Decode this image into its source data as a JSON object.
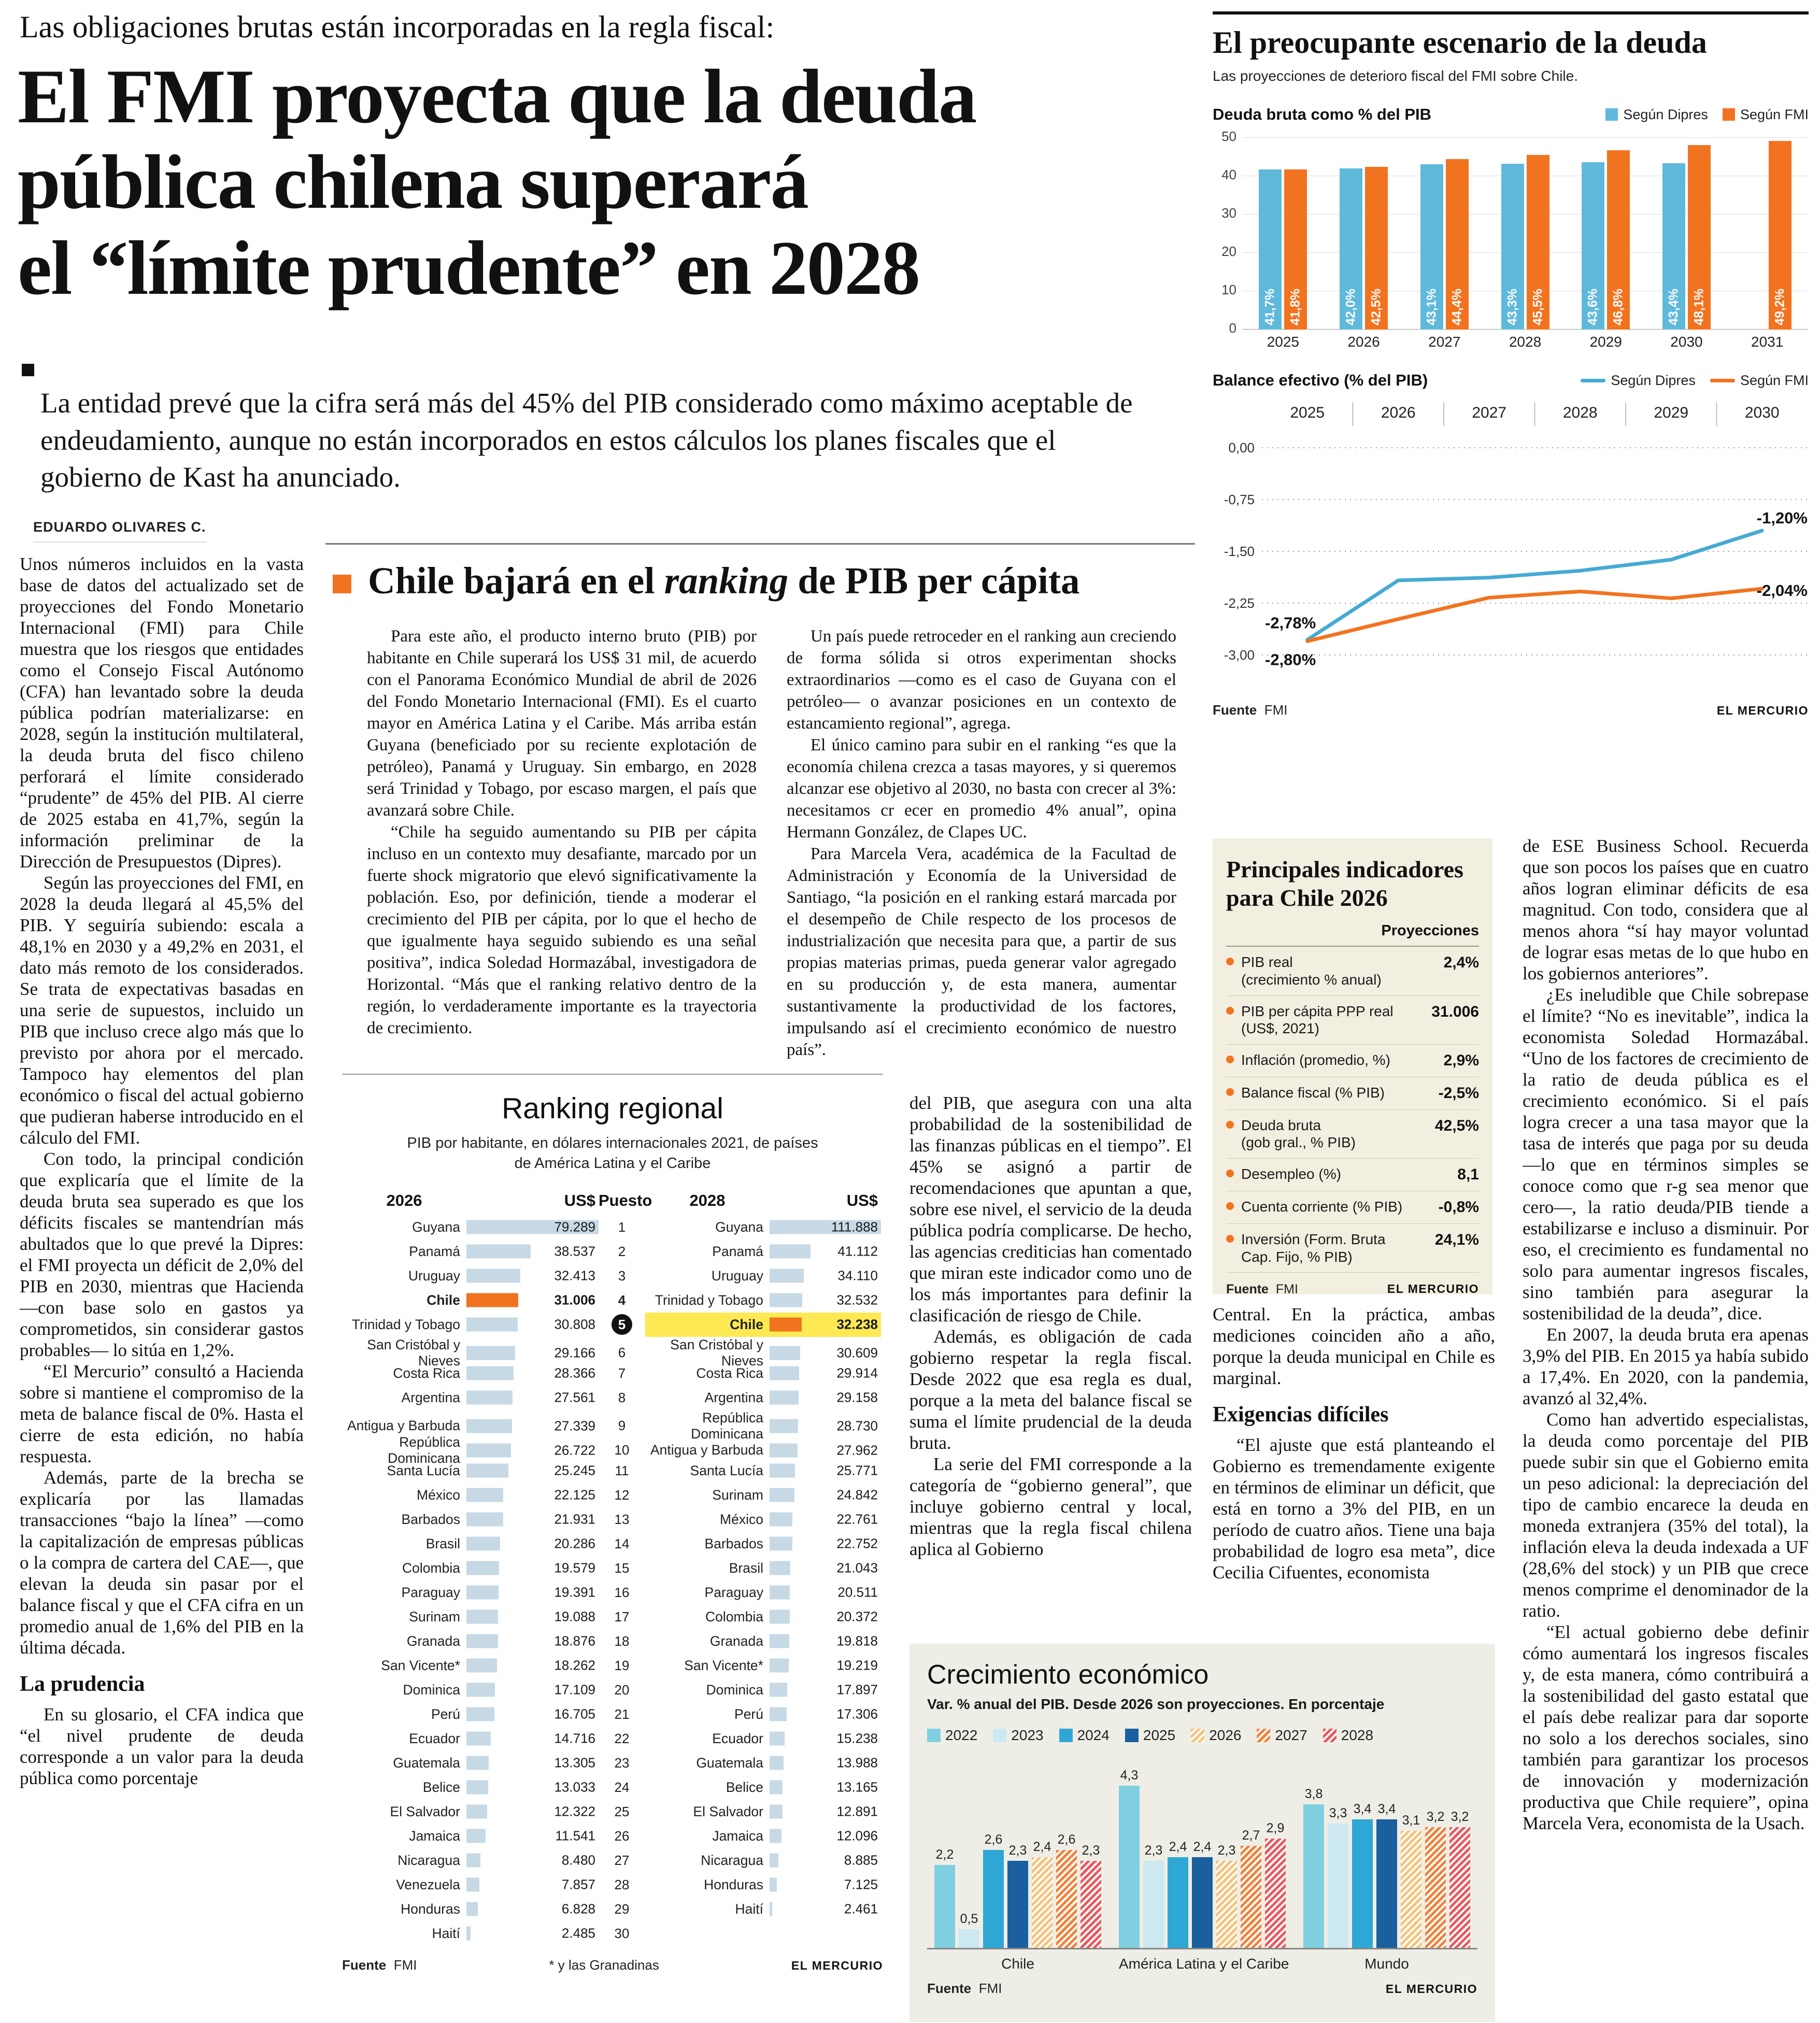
{
  "page": {
    "kicker": "Las obligaciones brutas están incorporadas en la regla fiscal:",
    "headline_line1": "El FMI proyecta que la deuda",
    "headline_line2": "pública chilena superará",
    "headline_line3": "el “límite prudente” en 2028",
    "deck": "La entidad prevé que la cifra será más del 45% del PIB considerado como máximo aceptable de endeudamiento, aunque no están incorporados en estos cálculos los planes fiscales que el gobierno de Kast ha anunciado.",
    "byline": "EDUARDO OLIVARES C."
  },
  "sources": {
    "fuente": "Fuente",
    "fmi": "FMI",
    "credit": "EL MERCURIO",
    "footnote": "* y las Granadinas"
  },
  "article": {
    "col_left": [
      "Unos números incluidos en la vasta base de datos del actualizado set de proyecciones del Fondo Monetario Internacional (FMI) para Chile muestra que los riesgos que entidades como el Consejo Fiscal Autónomo (CFA) han levantado sobre la deuda pública podrían materializarse: en 2028, según la institución multilateral, la deuda bruta del fisco chileno perforará el límite considerado “prudente” de 45% del PIB. Al cierre de 2025 estaba en 41,7%, según la información preliminar de la Dirección de Presupuestos (Dipres).",
      "Según las proyecciones del FMI, en 2028 la deuda llegará al 45,5% del PIB. Y seguiría subiendo: escala a 48,1% en 2030 y a 49,2% en 2031, el dato más remoto de los considerados. Se trata de expectativas basadas en una serie de supuestos, incluido un PIB que incluso crece algo más que lo previsto por ahora por el mercado. Tampoco hay elementos del plan económico o fiscal del actual gobierno que pudieran haberse introducido en el cálculo del FMI.",
      "Con todo, la principal condición que explicaría que el límite de la deuda bruta sea superado es que los déficits fiscales se mantendrían más abultados que lo que prevé la Dipres: el FMI proyecta un déficit de 2,0% del PIB en 2030, mientras que Hacienda —con base solo en gastos ya comprometidos, sin considerar gastos probables— lo sitúa en 1,2%.",
      "“El Mercurio” consultó a Hacienda sobre si mantiene el compromiso de la meta de balance fiscal de 0%. Hasta el cierre de esta edición, no había respuesta.",
      "Además, parte de la brecha se explicaría por las llamadas transacciones “bajo la línea” —como la capitalización de empresas públicas o la compra de cartera del CAE—, que elevan la deuda sin pasar por el balance fiscal y que el CFA cifra en un promedio anual de 1,6% del PIB en la última década."
    ],
    "col_left_subhead": "La prudencia",
    "col_left_cont": [
      "En su glosario, el CFA indica que “el nivel prudente de deuda corresponde a un valor para la deuda pública como porcentaje"
    ],
    "col_mid": [
      "del PIB, que asegura con una alta probabilidad de la sostenibilidad de las finanzas públicas en el tiempo”. El 45% se asignó a partir de recomendaciones que apuntan a que, sobre ese nivel, el servicio de la deuda pública podría complicarse. De hecho, las agencias crediticias han comentado que miran este indicador como uno de los más importantes para definir la clasificación de riesgo de Chile.",
      "Además, es obligación de cada gobierno respetar la regla fiscal. Desde 2022 que esa regla es dual, porque a la meta del balance fiscal se suma el límite prudencial de la deuda bruta.",
      "La serie del FMI corresponde a la categoría de “gobierno general”, que incluye gobierno central y local, mientras que la regla fiscal chilena aplica al Gobierno"
    ],
    "col_center": [
      "Central. En la práctica, ambas mediciones coinciden año a año, porque la deuda municipal en Chile es marginal."
    ],
    "col_center_subhead": "Exigencias difíciles",
    "col_center_cont": [
      "“El ajuste que está planteando el Gobierno es tremendamente exigente en términos de eliminar un déficit, que está en torno a 3% del PIB, en un período de cuatro años. Tiene una baja probabilidad de logro esa meta”, dice Cecilia Cifuentes, economista"
    ],
    "col_right": [
      "de ESE Business School. Recuerda que son pocos los países que en cuatro años logran eliminar déficits de esa magnitud. Con todo, considera que al menos ahora “sí hay mayor voluntad de lograr esas metas de lo que hubo en los gobiernos anteriores”.",
      "¿Es ineludible que Chile sobrepase el límite? “No es inevitable”, indica la economista Soledad Hormazábal. “Uno de los factores de crecimiento de la ratio de deuda pública es el crecimiento económico. Si el país logra crecer a una tasa mayor que la tasa de interés que paga por su deuda —lo que en términos simples se conoce como que r-g sea menor que cero—, la ratio deuda/PIB tiende a estabilizarse e incluso a disminuir. Por eso, el crecimiento es fundamental no solo para aumentar ingresos fiscales, sino también para asegurar la sostenibilidad de la deuda”, dice.",
      "En 2007, la deuda bruta era apenas 3,9% del PIB. En 2015 ya había subido a 17,4%. En 2020, con la pandemia, avanzó al 32,4%.",
      "Como han advertido especialistas, la deuda como porcentaje del PIB puede subir sin que el Gobierno emita un peso adicional: la depreciación del tipo de cambio encarece la deuda en moneda extranjera (35% del total), la inflación eleva la deuda indexada a UF (28,6% del stock) y un PIB que crece menos comprime el denominador de la ratio.",
      "“El actual gobierno debe definir cómo aumentará los ingresos fiscales y, de esta manera, cómo contribuirá a la sostenibilidad del gasto estatal que el país debe realizar para dar soporte no solo a los derechos sociales, sino también para garantizar los procesos de innovación y modernización productiva que Chile requiere”, opina Marcela Vera, economista de la Usach."
    ]
  },
  "box_article": {
    "title_pre": "Chile bajará en el ",
    "title_italic": "ranking",
    "title_post": " de PIB per cápita",
    "col1": [
      "Para este año, el producto interno bruto (PIB) por habitante en Chile superará los US$ 31 mil, de acuerdo con el Panorama Económico Mundial de abril de 2026 del Fondo Monetario Internacional (FMI). Es el cuarto mayor en América Latina y el Caribe. Más arriba están Guyana (beneficiado por su reciente explotación de petróleo), Panamá y Uruguay. Sin embargo, en 2028 será Trinidad y Tobago, por escaso margen, el país que avanzará sobre Chile.",
      "“Chile ha seguido aumentando su PIB per cápita incluso en un contexto muy desafiante, marcado por un fuerte shock migratorio que elevó significativamente la población. Eso, por definición, tiende a moderar el crecimiento del PIB per cápita, por lo que el hecho de que igualmente haya seguido subiendo es una señal positiva”, indica Soledad Hormazábal, investigadora de Horizontal. “Más que el ranking relativo dentro de la región, lo verdaderamente importante es la trayectoria de crecimiento."
    ],
    "col2": [
      "Un país puede retroceder en el ranking aun creciendo de forma sólida si otros experimentan shocks extraordinarios —como es el caso de Guyana con el petróleo— o avanzar posiciones en un contexto de estancamiento regional”, agrega.",
      "El único camino para subir en el ranking “es que la economía chilena crezca a tasas mayores, y si queremos alcanzar ese objetivo al 2030, no basta con crecer al 3%: necesitamos cr ecer en promedio 4% anual”, opina Hermann González, de Clapes UC.",
      "Para Marcela Vera, académica de la Facultad de Administración y Economía de la Universidad de Santiago, “la posición en el ranking estará marcada por el desempeño de Chile respecto de los procesos de industrialización que necesita para que, a partir de sus propias materias primas, pueda generar valor agregado en su producción y, de esta manera, aumentar sustantivamente la productividad de los factores, impulsando así el crecimiento económico de nuestro país”."
    ]
  },
  "charts_panel": {
    "title": "El preocupante escenario de la deuda",
    "subtitle": "Las proyecciones de deterioro fiscal del FMI sobre Chile."
  },
  "chart_data": [
    {
      "type": "bar",
      "title": "Deuda bruta como % del PIB",
      "categories": [
        "2025",
        "2026",
        "2027",
        "2028",
        "2029",
        "2030",
        "2031"
      ],
      "series": [
        {
          "name": "Según Dipres",
          "color": "#5fb9db",
          "values": [
            41.7,
            42.0,
            43.1,
            43.3,
            43.6,
            43.4,
            null
          ],
          "labels": [
            "41,7%",
            "42,0%",
            "43,1%",
            "43,3%",
            "43,6%",
            "43,4%",
            ""
          ]
        },
        {
          "name": "Según FMI",
          "color": "#f2731f",
          "values": [
            41.8,
            42.5,
            44.4,
            45.5,
            46.8,
            48.1,
            49.2
          ],
          "labels": [
            "41,8%",
            "42,5%",
            "44,4%",
            "45,5%",
            "46,8%",
            "48,1%",
            "49,2%"
          ]
        }
      ],
      "ylim": [
        0,
        50
      ],
      "yticks": [
        0,
        10,
        20,
        30,
        40,
        50
      ],
      "grid": true,
      "legend_position": "top-right"
    },
    {
      "type": "line",
      "title": "Balance efectivo (% del PIB)",
      "x": [
        "2025",
        "2026",
        "2027",
        "2028",
        "2029",
        "2030"
      ],
      "ylim": [
        -3,
        0
      ],
      "ytick_values": [
        0,
        -0.75,
        -1.5,
        -2.25,
        -3
      ],
      "yticks": [
        "0,00",
        "-0,75",
        "-1,50",
        "-2,25",
        "-3,00"
      ],
      "grid": "dotted",
      "legend_position": "top-right",
      "series": [
        {
          "name": "Según Dipres",
          "color": "#45aad4",
          "values": [
            -2.78,
            -1.92,
            -1.88,
            -1.78,
            -1.62,
            -1.2
          ],
          "start_label": "-2,78%",
          "end_label": "-1,20%"
        },
        {
          "name": "Según FMI",
          "color": "#f2731f",
          "values": [
            -2.8,
            -2.48,
            -2.17,
            -2.08,
            -2.18,
            -2.04
          ],
          "start_label": "-2,80%",
          "end_label": "-2,04%"
        }
      ]
    },
    {
      "type": "bar",
      "title": "Crecimiento económico",
      "subtitle": "Var. % anual del PIB. Desde 2026 son proyecciones. En porcentaje",
      "years": [
        "2022",
        "2023",
        "2024",
        "2025",
        "2026",
        "2027",
        "2028"
      ],
      "year_styles": [
        "solid:#7fcfe0",
        "solid:#cce9f1",
        "solid:#2fa7d4",
        "solid:#1a5f9e",
        "hatch:#f6c27a",
        "hatch:#f0823a",
        "hatch:#e85a5e"
      ],
      "ymax": 4.6,
      "groups": [
        {
          "label": "Chile",
          "values": [
            2.2,
            0.5,
            2.6,
            2.3,
            2.4,
            2.6,
            2.3
          ],
          "labels": [
            "2,2",
            "0,5",
            "2,6",
            "2,3",
            "2,4",
            "2,6",
            "2,3"
          ]
        },
        {
          "label": "América Latina y el Caribe",
          "values": [
            4.3,
            2.3,
            2.4,
            2.4,
            2.3,
            2.7,
            2.9
          ],
          "labels": [
            "4,3",
            "2,3",
            "2,4",
            "2,4",
            "2,3",
            "2,7",
            "2,9"
          ]
        },
        {
          "label": "Mundo",
          "values": [
            3.8,
            3.3,
            3.4,
            3.4,
            3.1,
            3.2,
            3.2
          ],
          "labels": [
            "3,8",
            "3,3",
            "3,4",
            "3,4",
            "3,1",
            "3,2",
            "3,2"
          ]
        }
      ]
    }
  ],
  "ranking": {
    "title": "Ranking regional",
    "subtitle_line1": "PIB por habitante, en dólares internacionales 2021, de países",
    "subtitle_line2": "de América Latina y el Caribe",
    "col_2026": "2026",
    "col_usd": "US$",
    "col_puesto": "Puesto",
    "col_2028": "2028",
    "col_usd2": "US$",
    "max_2026": 79289,
    "max_2028": 111888,
    "rows": [
      {
        "rank": 1,
        "c26": "Guyana",
        "v26": "79.289",
        "n26": 79289,
        "c28": "Guyana",
        "v28": "111.888",
        "n28": 111888
      },
      {
        "rank": 2,
        "c26": "Panamá",
        "v26": "38.537",
        "n26": 38537,
        "c28": "Panamá",
        "v28": "41.112",
        "n28": 41112
      },
      {
        "rank": 3,
        "c26": "Uruguay",
        "v26": "32.413",
        "n26": 32413,
        "c28": "Uruguay",
        "v28": "34.110",
        "n28": 34110
      },
      {
        "rank": 4,
        "c26": "Chile",
        "v26": "31.006",
        "n26": 31006,
        "hl26": true,
        "c28": "Trinidad y Tobago",
        "v28": "32.532",
        "n28": 32532
      },
      {
        "rank": 5,
        "c26": "Trinidad y Tobago",
        "v26": "30.808",
        "n26": 30808,
        "circle": true,
        "c28": "Chile",
        "v28": "32.238",
        "n28": 32238,
        "hl28": true
      },
      {
        "rank": 6,
        "c26": "San Cristóbal y Nieves",
        "v26": "29.166",
        "n26": 29166,
        "c28": "San Cristóbal y Nieves",
        "v28": "30.609",
        "n28": 30609
      },
      {
        "rank": 7,
        "c26": "Costa Rica",
        "v26": "28.366",
        "n26": 28366,
        "c28": "Costa Rica",
        "v28": "29.914",
        "n28": 29914
      },
      {
        "rank": 8,
        "c26": "Argentina",
        "v26": "27.561",
        "n26": 27561,
        "c28": "Argentina",
        "v28": "29.158",
        "n28": 29158
      },
      {
        "rank": 9,
        "c26": "Antigua y Barbuda",
        "v26": "27.339",
        "n26": 27339,
        "c28": "República Dominicana",
        "v28": "28.730",
        "n28": 28730
      },
      {
        "rank": 10,
        "c26": "República Dominicana",
        "v26": "26.722",
        "n26": 26722,
        "c28": "Antigua y Barbuda",
        "v28": "27.962",
        "n28": 27962
      },
      {
        "rank": 11,
        "c26": "Santa Lucía",
        "v26": "25.245",
        "n26": 25245,
        "c28": "Santa Lucía",
        "v28": "25.771",
        "n28": 25771
      },
      {
        "rank": 12,
        "c26": "México",
        "v26": "22.125",
        "n26": 22125,
        "c28": "Surinam",
        "v28": "24.842",
        "n28": 24842
      },
      {
        "rank": 13,
        "c26": "Barbados",
        "v26": "21.931",
        "n26": 21931,
        "c28": "México",
        "v28": "22.761",
        "n28": 22761
      },
      {
        "rank": 14,
        "c26": "Brasil",
        "v26": "20.286",
        "n26": 20286,
        "c28": "Barbados",
        "v28": "22.752",
        "n28": 22752
      },
      {
        "rank": 15,
        "c26": "Colombia",
        "v26": "19.579",
        "n26": 19579,
        "c28": "Brasil",
        "v28": "21.043",
        "n28": 21043
      },
      {
        "rank": 16,
        "c26": "Paraguay",
        "v26": "19.391",
        "n26": 19391,
        "c28": "Paraguay",
        "v28": "20.511",
        "n28": 20511
      },
      {
        "rank": 17,
        "c26": "Surinam",
        "v26": "19.088",
        "n26": 19088,
        "c28": "Colombia",
        "v28": "20.372",
        "n28": 20372
      },
      {
        "rank": 18,
        "c26": "Granada",
        "v26": "18.876",
        "n26": 18876,
        "c28": "Granada",
        "v28": "19.818",
        "n28": 19818
      },
      {
        "rank": 19,
        "c26": "San Vicente*",
        "v26": "18.262",
        "n26": 18262,
        "c28": "San Vicente*",
        "v28": "19.219",
        "n28": 19219
      },
      {
        "rank": 20,
        "c26": "Dominica",
        "v26": "17.109",
        "n26": 17109,
        "c28": "Dominica",
        "v28": "17.897",
        "n28": 17897
      },
      {
        "rank": 21,
        "c26": "Perú",
        "v26": "16.705",
        "n26": 16705,
        "c28": "Perú",
        "v28": "17.306",
        "n28": 17306
      },
      {
        "rank": 22,
        "c26": "Ecuador",
        "v26": "14.716",
        "n26": 14716,
        "c28": "Ecuador",
        "v28": "15.238",
        "n28": 15238
      },
      {
        "rank": 23,
        "c26": "Guatemala",
        "v26": "13.305",
        "n26": 13305,
        "c28": "Guatemala",
        "v28": "13.988",
        "n28": 13988
      },
      {
        "rank": 24,
        "c26": "Belice",
        "v26": "13.033",
        "n26": 13033,
        "c28": "Belice",
        "v28": "13.165",
        "n28": 13165
      },
      {
        "rank": 25,
        "c26": "El Salvador",
        "v26": "12.322",
        "n26": 12322,
        "c28": "El Salvador",
        "v28": "12.891",
        "n28": 12891
      },
      {
        "rank": 26,
        "c26": "Jamaica",
        "v26": "11.541",
        "n26": 11541,
        "c28": "Jamaica",
        "v28": "12.096",
        "n28": 12096
      },
      {
        "rank": 27,
        "c26": "Nicaragua",
        "v26": "8.480",
        "n26": 8480,
        "c28": "Nicaragua",
        "v28": "8.885",
        "n28": 8885
      },
      {
        "rank": 28,
        "c26": "Venezuela",
        "v26": "7.857",
        "n26": 7857,
        "c28": "Honduras",
        "v28": "7.125",
        "n28": 7125
      },
      {
        "rank": 29,
        "c26": "Honduras",
        "v26": "6.828",
        "n26": 6828,
        "c28": "Haití",
        "v28": "2.461",
        "n28": 2461
      },
      {
        "rank": 30,
        "c26": "Haití",
        "v26": "2.485",
        "n26": 2485,
        "c28": "",
        "v28": "",
        "n28": 0
      }
    ]
  },
  "indicators": {
    "title_line1": "Principales indicadores",
    "title_line2": "para Chile 2026",
    "col_header": "Proyecciones",
    "rows": [
      {
        "label": "PIB real",
        "label2": "(crecimiento % anual)",
        "value": "2,4%"
      },
      {
        "label": "PIB per cápita PPP real",
        "label2": "(US$, 2021)",
        "value": "31.006"
      },
      {
        "label": "Inflación (promedio, %)",
        "value": "2,9%"
      },
      {
        "label": "Balance fiscal (% PIB)",
        "value": "-2,5%"
      },
      {
        "label": "Deuda bruta",
        "label2": "(gob gral., % PIB)",
        "value": "42,5%"
      },
      {
        "label": "Desempleo (%)",
        "value": "8,1"
      },
      {
        "label": "Cuenta corriente (% PIB)",
        "value": "-0,8%"
      },
      {
        "label": "Inversión (Form. Bruta",
        "label2": "Cap. Fijo, % PIB)",
        "value": "24,1%"
      }
    ]
  }
}
